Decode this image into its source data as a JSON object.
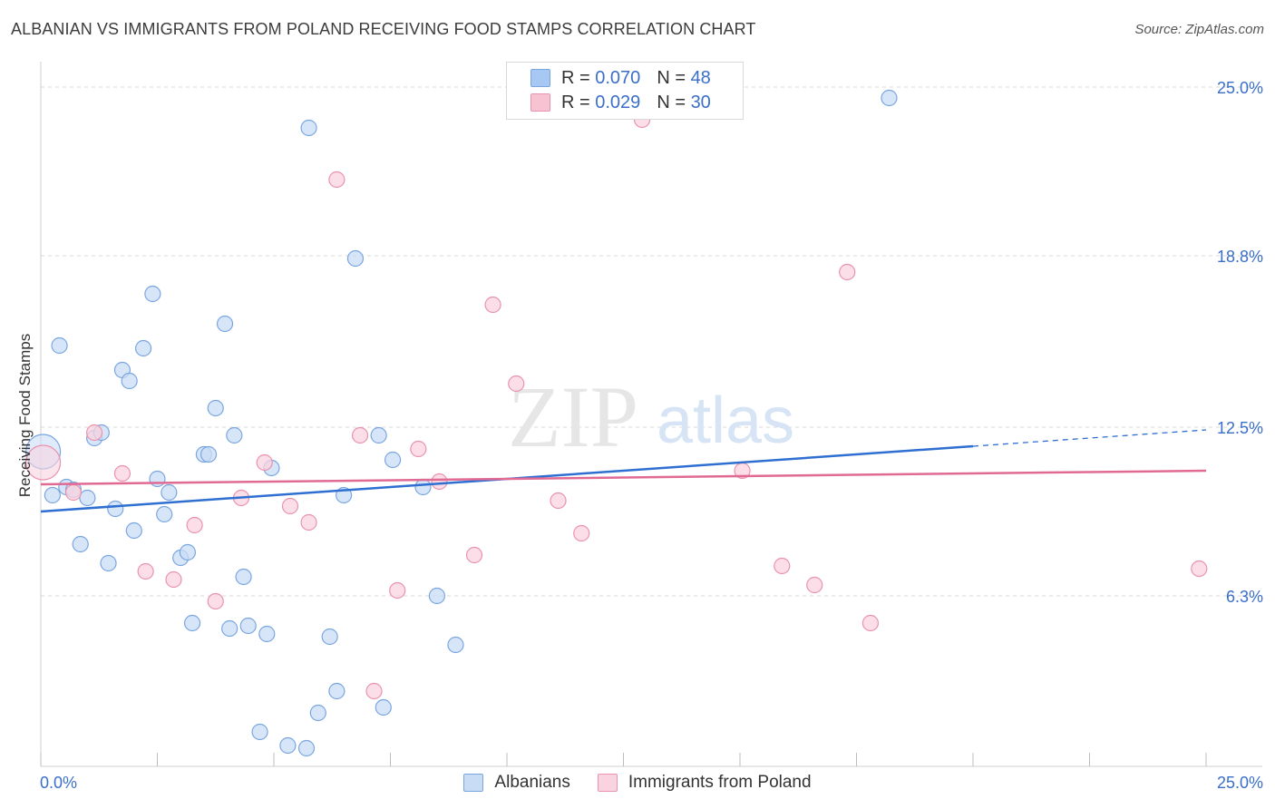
{
  "title": "ALBANIAN VS IMMIGRANTS FROM POLAND RECEIVING FOOD STAMPS CORRELATION CHART",
  "source": "Source: ZipAtlas.com",
  "watermark": {
    "zip": "ZIP",
    "atlas": "atlas"
  },
  "legend_top": {
    "rows": [
      {
        "r_label": "R =",
        "r_value": "0.070",
        "n_label": "N =",
        "n_value": "48",
        "color": "#a7c8f2",
        "border": "#7aa6e0"
      },
      {
        "r_label": "R =",
        "r_value": "0.029",
        "n_label": "N =",
        "n_value": "30",
        "color": "#f7c3d3",
        "border": "#e993ae"
      }
    ]
  },
  "legend_bottom": [
    {
      "label": "Albanians",
      "color": "#c9dcf6",
      "border": "#7aa6e0"
    },
    {
      "label": "Immigrants from Poland",
      "color": "#f9d3df",
      "border": "#e993ae"
    }
  ],
  "chart_data": {
    "type": "scatter",
    "title": "ALBANIAN VS IMMIGRANTS FROM POLAND RECEIVING FOOD STAMPS CORRELATION CHART",
    "xlabel": "",
    "ylabel": "Receiving Food Stamps",
    "xlim": [
      0,
      25
    ],
    "ylim": [
      0,
      25.6
    ],
    "x_tick_labels": [
      "0.0%",
      "25.0%"
    ],
    "y_ticks": [
      6.3,
      12.5,
      18.8,
      25.0
    ],
    "y_tick_labels": [
      "6.3%",
      "12.5%",
      "18.8%",
      "25.0%"
    ],
    "grid": true,
    "series": [
      {
        "name": "Albanians",
        "color": "#7aa6e0",
        "fill": "#c9dcf6",
        "line_color": "#2e6fd1",
        "trend": {
          "x0": 0,
          "y0": 9.4,
          "x1": 20.0,
          "y1": 11.8,
          "dash_to_x": 25.0,
          "dash_to_y": 12.4
        },
        "points": [
          {
            "x": 0.05,
            "y": 11.6,
            "big": true
          },
          {
            "x": 0.25,
            "y": 10.0
          },
          {
            "x": 0.4,
            "y": 15.5
          },
          {
            "x": 0.55,
            "y": 10.3
          },
          {
            "x": 0.7,
            "y": 10.2
          },
          {
            "x": 0.85,
            "y": 8.2
          },
          {
            "x": 1.0,
            "y": 9.9
          },
          {
            "x": 1.15,
            "y": 12.1
          },
          {
            "x": 1.3,
            "y": 12.3
          },
          {
            "x": 1.45,
            "y": 7.5
          },
          {
            "x": 1.6,
            "y": 9.5
          },
          {
            "x": 1.75,
            "y": 14.6
          },
          {
            "x": 1.9,
            "y": 14.2
          },
          {
            "x": 2.0,
            "y": 8.7
          },
          {
            "x": 2.2,
            "y": 15.4
          },
          {
            "x": 2.4,
            "y": 17.4
          },
          {
            "x": 2.5,
            "y": 10.6
          },
          {
            "x": 2.65,
            "y": 9.3
          },
          {
            "x": 2.75,
            "y": 10.1
          },
          {
            "x": 3.0,
            "y": 7.7
          },
          {
            "x": 3.15,
            "y": 7.9
          },
          {
            "x": 3.25,
            "y": 5.3
          },
          {
            "x": 3.5,
            "y": 11.5
          },
          {
            "x": 3.6,
            "y": 11.5
          },
          {
            "x": 3.75,
            "y": 13.2
          },
          {
            "x": 3.95,
            "y": 16.3
          },
          {
            "x": 4.05,
            "y": 5.1
          },
          {
            "x": 4.15,
            "y": 12.2
          },
          {
            "x": 4.35,
            "y": 7.0
          },
          {
            "x": 4.45,
            "y": 5.2
          },
          {
            "x": 4.7,
            "y": 1.3
          },
          {
            "x": 4.85,
            "y": 4.9
          },
          {
            "x": 4.95,
            "y": 11.0
          },
          {
            "x": 5.3,
            "y": 0.8
          },
          {
            "x": 5.7,
            "y": 0.7
          },
          {
            "x": 5.75,
            "y": 23.5
          },
          {
            "x": 5.95,
            "y": 2.0
          },
          {
            "x": 6.2,
            "y": 4.8
          },
          {
            "x": 6.35,
            "y": 2.8
          },
          {
            "x": 6.5,
            "y": 10.0
          },
          {
            "x": 6.75,
            "y": 18.7
          },
          {
            "x": 7.25,
            "y": 12.2
          },
          {
            "x": 7.35,
            "y": 2.2
          },
          {
            "x": 7.55,
            "y": 11.3
          },
          {
            "x": 8.2,
            "y": 10.3
          },
          {
            "x": 8.5,
            "y": 6.3
          },
          {
            "x": 8.9,
            "y": 4.5
          },
          {
            "x": 18.2,
            "y": 24.6
          }
        ]
      },
      {
        "name": "Immigrants from Poland",
        "color": "#e993ae",
        "fill": "#f9d3df",
        "line_color": "#e06a94",
        "trend": {
          "x0": 0,
          "y0": 10.4,
          "x1": 25.0,
          "y1": 10.9
        },
        "points": [
          {
            "x": 0.05,
            "y": 11.2,
            "big": true
          },
          {
            "x": 0.7,
            "y": 10.1
          },
          {
            "x": 1.15,
            "y": 12.3
          },
          {
            "x": 1.75,
            "y": 10.8
          },
          {
            "x": 2.25,
            "y": 7.2
          },
          {
            "x": 2.85,
            "y": 6.9
          },
          {
            "x": 3.3,
            "y": 8.9
          },
          {
            "x": 3.75,
            "y": 6.1
          },
          {
            "x": 4.3,
            "y": 9.9
          },
          {
            "x": 4.8,
            "y": 11.2
          },
          {
            "x": 5.35,
            "y": 9.6
          },
          {
            "x": 5.75,
            "y": 9.0
          },
          {
            "x": 6.35,
            "y": 21.6
          },
          {
            "x": 6.85,
            "y": 12.2
          },
          {
            "x": 7.15,
            "y": 2.8
          },
          {
            "x": 7.65,
            "y": 6.5
          },
          {
            "x": 8.1,
            "y": 11.7
          },
          {
            "x": 8.55,
            "y": 10.5
          },
          {
            "x": 9.3,
            "y": 7.8
          },
          {
            "x": 9.7,
            "y": 17.0
          },
          {
            "x": 10.2,
            "y": 14.1
          },
          {
            "x": 11.1,
            "y": 9.8
          },
          {
            "x": 11.6,
            "y": 8.6
          },
          {
            "x": 12.9,
            "y": 23.8
          },
          {
            "x": 15.05,
            "y": 10.9
          },
          {
            "x": 15.9,
            "y": 7.4
          },
          {
            "x": 16.6,
            "y": 6.7
          },
          {
            "x": 17.3,
            "y": 18.2
          },
          {
            "x": 17.8,
            "y": 5.3
          },
          {
            "x": 24.85,
            "y": 7.3
          }
        ]
      }
    ]
  }
}
